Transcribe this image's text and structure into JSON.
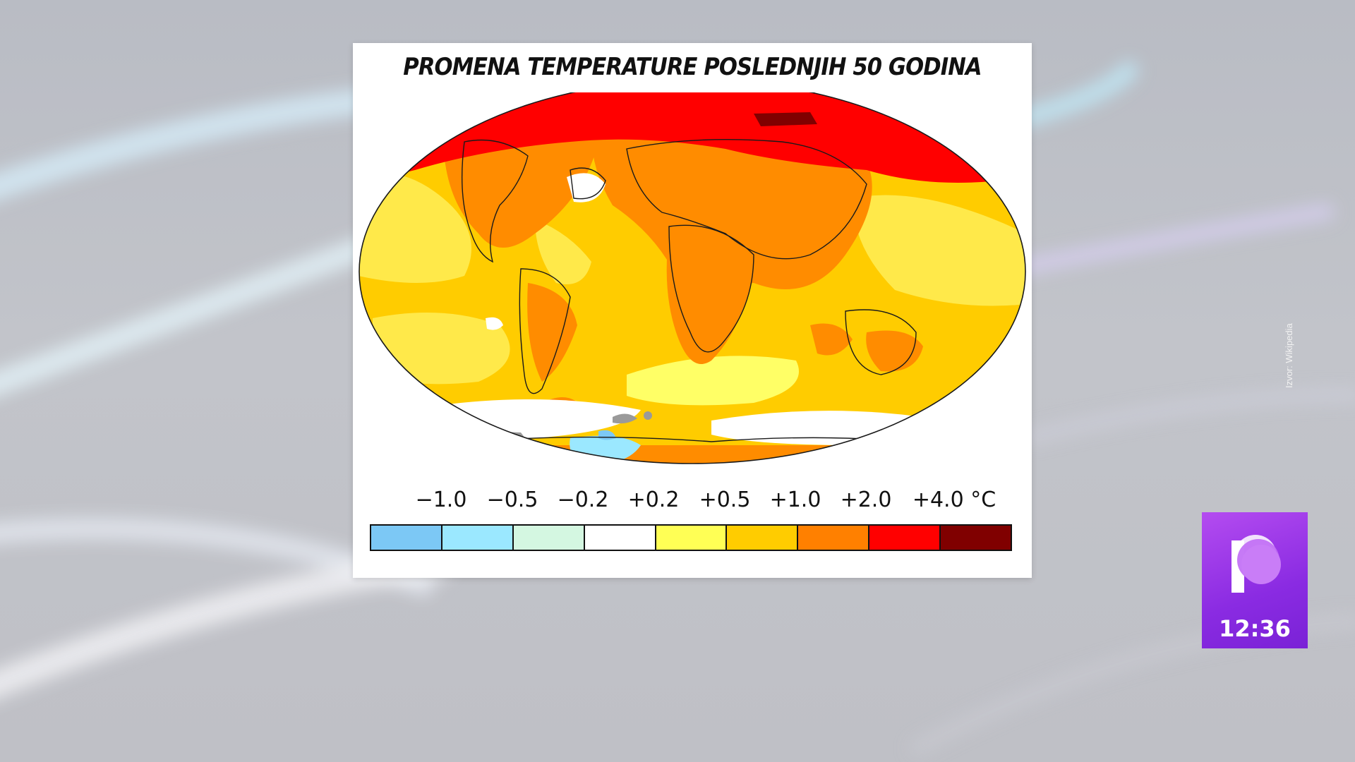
{
  "map": {
    "title": "PROMENA TEMPERATURE POSLEDNJIH 50 GODINA",
    "legend": {
      "labels": [
        "−1.0",
        "−0.5",
        "−0.2",
        "+0.2",
        "+0.5",
        "+1.0",
        "+2.0",
        "+4.0 °C"
      ],
      "colors": [
        "#7cc8f5",
        "#9be8ff",
        "#d4f7e1",
        "#ffffff",
        "#ffff55",
        "#ffcc00",
        "#ff8000",
        "#ff0000",
        "#800000"
      ]
    },
    "nodata_color": "#9a9a9a"
  },
  "source_text": "Izvor: Wikipedia",
  "channel": {
    "clock": "12:36",
    "accent": "#9b3be8"
  }
}
